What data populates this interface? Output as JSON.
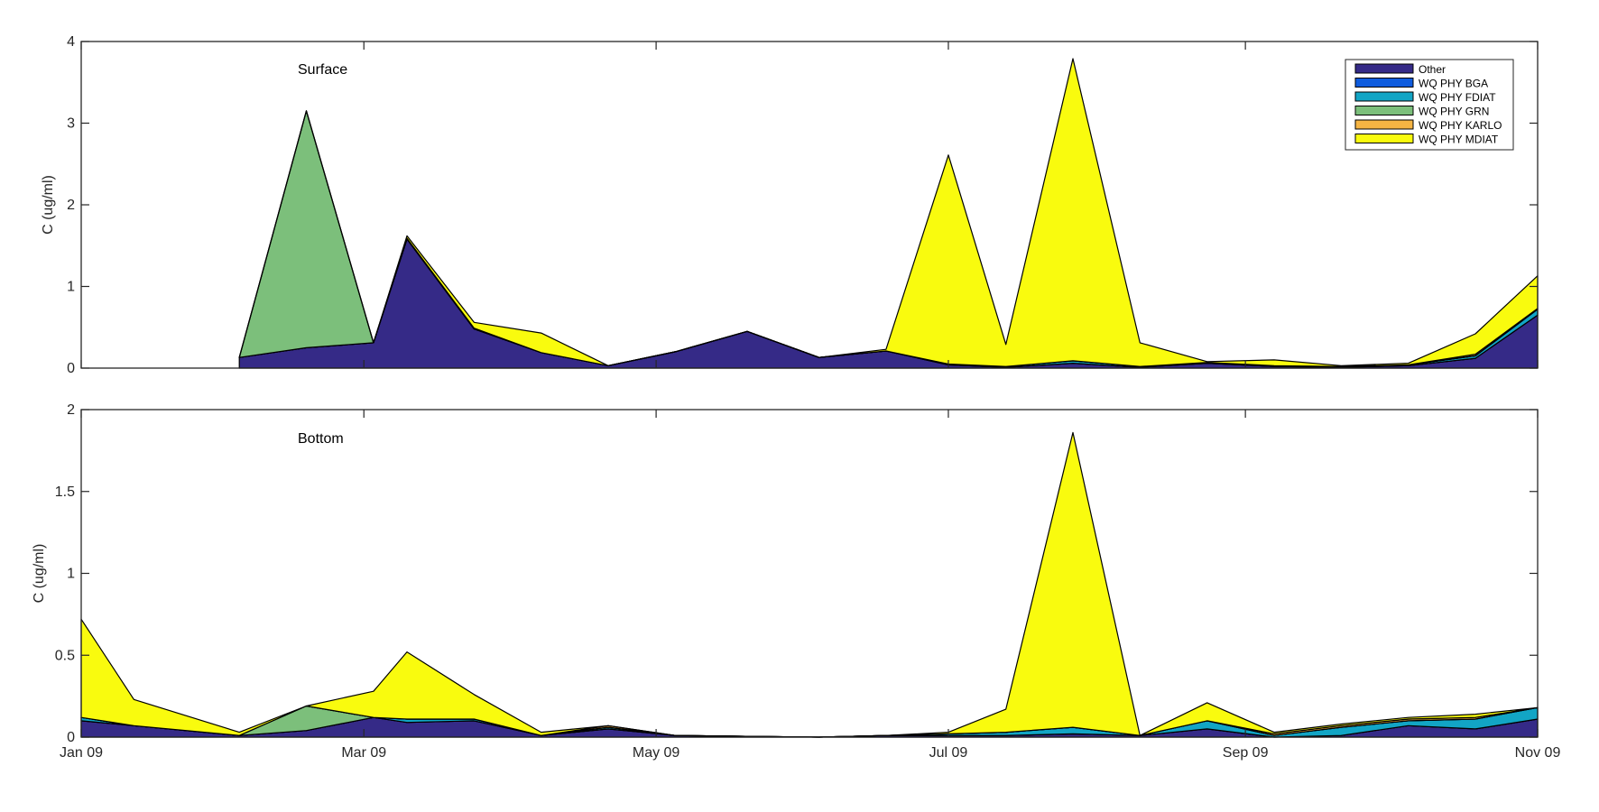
{
  "chart_data": [
    {
      "type": "area",
      "annotation": "Surface",
      "xlabel": "",
      "ylabel": "C (ug/ml)",
      "xlim": [
        "2009-01-01",
        "2009-11-01"
      ],
      "xticks": [
        "2009-01-01",
        "2009-03-01",
        "2009-05-01",
        "2009-07-01",
        "2009-09-01",
        "2009-11-01"
      ],
      "xtick_labels": [
        "Jan 09",
        "Mar 09",
        "May 09",
        "Jul 09",
        "Sep 09",
        "Nov 09"
      ],
      "ylim": [
        0,
        4
      ],
      "yticks": [
        0,
        1,
        2,
        3,
        4
      ],
      "ytick_labels": [
        "0",
        "1",
        "2",
        "3",
        "4"
      ],
      "grid": false,
      "stacked": true,
      "legend_position": "top-right",
      "x": [
        "2009-02-03",
        "2009-02-17",
        "2009-03-03",
        "2009-03-10",
        "2009-03-24",
        "2009-04-07",
        "2009-04-21",
        "2009-05-05",
        "2009-05-20",
        "2009-06-04",
        "2009-06-18",
        "2009-07-01",
        "2009-07-13",
        "2009-07-27",
        "2009-08-10",
        "2009-08-24",
        "2009-09-07",
        "2009-09-21",
        "2009-10-05",
        "2009-10-19",
        "2009-11-01"
      ],
      "series": [
        {
          "name": "Other",
          "values": [
            0.13,
            0.25,
            0.31,
            1.58,
            0.48,
            0.19,
            0.03,
            0.2,
            0.45,
            0.13,
            0.21,
            0.04,
            0.01,
            0.06,
            0.01,
            0.06,
            0.02,
            0.01,
            0.03,
            0.12,
            0.65
          ]
        },
        {
          "name": "WQ PHY BGA",
          "values": [
            0,
            0,
            0,
            0,
            0,
            0,
            0,
            0,
            0,
            0,
            0,
            0,
            0,
            0,
            0,
            0,
            0,
            0,
            0,
            0,
            0
          ]
        },
        {
          "name": "WQ PHY FDIAT",
          "values": [
            0,
            0,
            0,
            0,
            0,
            0,
            0,
            0,
            0,
            0,
            0,
            0.01,
            0.01,
            0.03,
            0.01,
            0.01,
            0.01,
            0.01,
            0.01,
            0.03,
            0.07
          ]
        },
        {
          "name": "WQ PHY GRN",
          "values": [
            0,
            2.9,
            0,
            0,
            0,
            0,
            0,
            0,
            0,
            0,
            0,
            0,
            0,
            0,
            0,
            0,
            0,
            0,
            0,
            0,
            0
          ]
        },
        {
          "name": "WQ PHY KARLO",
          "values": [
            0,
            0,
            0,
            0.01,
            0.01,
            0,
            0,
            0,
            0,
            0,
            0,
            0,
            0,
            0,
            0,
            0,
            0,
            0,
            0,
            0.02,
            0.01
          ]
        },
        {
          "name": "WQ PHY MDIAT",
          "values": [
            0,
            0,
            0,
            0.03,
            0.07,
            0.24,
            0,
            0,
            0,
            0,
            0.02,
            2.56,
            0.27,
            3.7,
            0.29,
            0.01,
            0.07,
            0.01,
            0.02,
            0.25,
            0.4
          ]
        }
      ]
    },
    {
      "type": "area",
      "annotation": "Bottom",
      "xlabel": "",
      "ylabel": "C (ug/ml)",
      "xlim": [
        "2009-01-01",
        "2009-11-01"
      ],
      "xticks": [
        "2009-01-01",
        "2009-03-01",
        "2009-05-01",
        "2009-07-01",
        "2009-09-01",
        "2009-11-01"
      ],
      "xtick_labels": [
        "Jan 09",
        "Mar 09",
        "May 09",
        "Jul 09",
        "Sep 09",
        "Nov 09"
      ],
      "ylim": [
        0,
        2
      ],
      "yticks": [
        0,
        0.5,
        1,
        1.5,
        2
      ],
      "ytick_labels": [
        "0",
        "0.5",
        "1",
        "1.5",
        "2"
      ],
      "grid": false,
      "stacked": true,
      "legend_position": "none",
      "x": [
        "2009-01-01",
        "2009-01-12",
        "2009-02-03",
        "2009-02-17",
        "2009-03-03",
        "2009-03-10",
        "2009-03-24",
        "2009-04-07",
        "2009-04-21",
        "2009-05-05",
        "2009-06-04",
        "2009-06-18",
        "2009-07-01",
        "2009-07-13",
        "2009-07-27",
        "2009-08-10",
        "2009-08-24",
        "2009-09-07",
        "2009-09-21",
        "2009-10-05",
        "2009-10-19",
        "2009-11-01"
      ],
      "series": [
        {
          "name": "Other",
          "values": [
            0.1,
            0.07,
            0.01,
            0.04,
            0.12,
            0.09,
            0.1,
            0.01,
            0.05,
            0.01,
            0.0,
            0.01,
            0.01,
            0.01,
            0.02,
            0.01,
            0.05,
            0.0,
            0.01,
            0.07,
            0.05,
            0.11
          ]
        },
        {
          "name": "WQ PHY BGA",
          "values": [
            0,
            0,
            0,
            0,
            0,
            0,
            0,
            0,
            0,
            0,
            0,
            0,
            0,
            0,
            0,
            0,
            0,
            0,
            0,
            0,
            0,
            0
          ]
        },
        {
          "name": "WQ PHY FDIAT",
          "values": [
            0.02,
            0.0,
            0.0,
            0.0,
            0.0,
            0.02,
            0.01,
            0.0,
            0.01,
            0.0,
            0.0,
            0.0,
            0.01,
            0.02,
            0.04,
            0.0,
            0.05,
            0.01,
            0.05,
            0.03,
            0.06,
            0.07
          ]
        },
        {
          "name": "WQ PHY GRN",
          "values": [
            0,
            0,
            0,
            0.15,
            0.0,
            0,
            0,
            0,
            0,
            0,
            0,
            0,
            0,
            0,
            0,
            0,
            0,
            0,
            0,
            0,
            0,
            0
          ]
        },
        {
          "name": "WQ PHY KARLO",
          "values": [
            0,
            0,
            0,
            0,
            0,
            0,
            0,
            0,
            0.01,
            0,
            0,
            0,
            0,
            0,
            0,
            0,
            0,
            0.01,
            0.01,
            0.01,
            0.01,
            0
          ]
        },
        {
          "name": "WQ PHY MDIAT",
          "values": [
            0.6,
            0.16,
            0.02,
            0.0,
            0.16,
            0.41,
            0.15,
            0.02,
            0.0,
            0.0,
            0.0,
            0.0,
            0.01,
            0.14,
            1.8,
            0.0,
            0.11,
            0.01,
            0.01,
            0.01,
            0.02,
            0.0
          ]
        }
      ]
    }
  ],
  "legend": {
    "entries": [
      {
        "label": "Other",
        "color": "#352a87"
      },
      {
        "label": "WQ PHY BGA",
        "color": "#0f5cdd"
      },
      {
        "label": "WQ PHY FDIAT",
        "color": "#12a5c5"
      },
      {
        "label": "WQ PHY GRN",
        "color": "#7cbf7b"
      },
      {
        "label": "WQ PHY KARLO",
        "color": "#f5b443"
      },
      {
        "label": "WQ PHY MDIAT",
        "color": "#f9fb0e"
      }
    ]
  }
}
